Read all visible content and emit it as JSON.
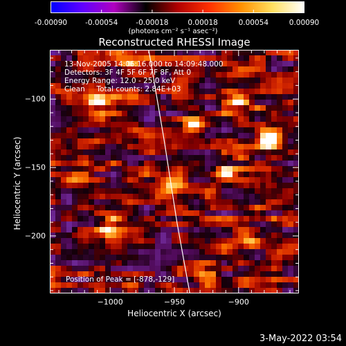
{
  "colorbar": {
    "tick_labels": [
      "-0.00090",
      "-0.00054",
      "-0.00018",
      "0.00018",
      "0.00054",
      "0.00090"
    ],
    "units": "(photons cm⁻² s⁻¹ asec⁻²)",
    "range": [
      -0.0009,
      0.0009
    ],
    "palette": [
      "#0000ff",
      "#6000ff",
      "#b000c0",
      "#000000",
      "#b00000",
      "#ff3000",
      "#ff9000",
      "#ffe060",
      "#ffffff"
    ]
  },
  "title": "Reconstructed RHESSI Image",
  "annotations": {
    "line1": "13-Nov-2005 14:06:16.000 to 14:09:48.000",
    "line2": "Detectors: 3F 4F 5F 6F 7F 8F, Att 0",
    "line3": "Energy Range: 12.0 - 25.0 keV",
    "line4": "Clean     Total counts: 2.84E+03",
    "peak": "Position of Peak = [-878,-129]"
  },
  "footer_date": "3-May-2022 03:54",
  "chart_data": {
    "type": "heatmap",
    "title": "Reconstructed RHESSI Image",
    "xlabel": "Heliocentric X (arcsec)",
    "ylabel": "Heliocentric Y (arcsec)",
    "xlim": [
      -1047,
      -853
    ],
    "ylim": [
      -242,
      -64
    ],
    "x_ticks": [
      -1000,
      -950,
      -900
    ],
    "y_ticks": [
      -100,
      -150,
      -200
    ],
    "x_tick_labels": [
      "−1000",
      "−950",
      "−900"
    ],
    "y_tick_labels": [
      "−100",
      "−150",
      "−200"
    ],
    "peak_position": [
      -878,
      -129
    ],
    "limb_arc_points": [
      [
        -970,
        -64
      ],
      [
        -958,
        -130
      ],
      [
        -948,
        -190
      ],
      [
        -938,
        -242
      ]
    ],
    "hotspots": [
      {
        "x": -878,
        "y": -129,
        "value": 0.0009
      },
      {
        "x": -1010,
        "y": -100,
        "value": 0.0007
      },
      {
        "x": -935,
        "y": -118,
        "value": 0.0006
      },
      {
        "x": -900,
        "y": -102,
        "value": 0.0006
      },
      {
        "x": -910,
        "y": -155,
        "value": 0.0005
      },
      {
        "x": -1000,
        "y": -195,
        "value": 0.0006
      },
      {
        "x": -955,
        "y": -165,
        "value": 0.0005
      },
      {
        "x": -930,
        "y": -225,
        "value": 0.0004
      },
      {
        "x": -890,
        "y": -205,
        "value": 0.00045
      },
      {
        "x": -1030,
        "y": -155,
        "value": 0.0003
      },
      {
        "x": -985,
        "y": -75,
        "value": 0.0004
      }
    ]
  }
}
